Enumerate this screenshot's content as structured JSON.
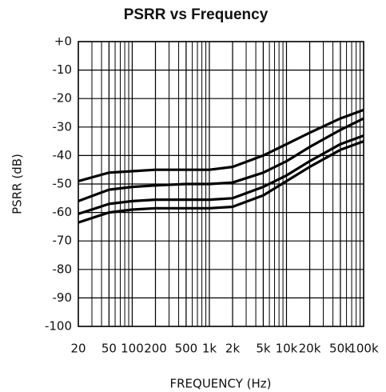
{
  "chart_data": {
    "type": "line",
    "title": "PSRR vs Frequency",
    "x_label": "FREQUENCY (Hz)",
    "y_label": "PSRR (dB)",
    "x": [
      20,
      50,
      100,
      200,
      500,
      1000,
      2000,
      5000,
      10000,
      20000,
      50000,
      100000
    ],
    "series": [
      {
        "color": "#000000",
        "values": [
          -49,
          -46,
          -45.5,
          -45,
          -45,
          -45,
          -44,
          -40,
          -36,
          -32,
          -27,
          -24
        ]
      },
      {
        "color": "#000000",
        "values": [
          -56,
          -52,
          -51,
          -50.5,
          -50,
          -50,
          -49.5,
          -46,
          -42,
          -37,
          -31,
          -27
        ]
      },
      {
        "color": "#000000",
        "values": [
          -60.5,
          -57,
          -56,
          -55.5,
          -55.5,
          -55.5,
          -55,
          -51,
          -47,
          -42,
          -36,
          -33
        ]
      },
      {
        "color": "#000000",
        "values": [
          -63.5,
          -60,
          -59,
          -58.5,
          -58.5,
          -58.5,
          -58,
          -54,
          -49,
          -44,
          -38,
          -35
        ]
      }
    ],
    "xlim": [
      20,
      100000
    ],
    "x_log": true,
    "xticks": [
      20,
      50,
      100,
      200,
      500,
      {
        "value": 1000,
        "label": "1k"
      },
      {
        "value": 2000,
        "label": "2k"
      },
      {
        "value": 5000,
        "label": "5k"
      },
      {
        "value": 10000,
        "label": "10k"
      },
      {
        "value": 20000,
        "label": "20k"
      },
      {
        "value": 50000,
        "label": "50k"
      },
      {
        "value": 100000,
        "label": "100k"
      }
    ],
    "ylim": [
      -100,
      0
    ],
    "yticks": [
      {
        "value": 0,
        "label": "+0"
      },
      -10,
      -20,
      -30,
      -40,
      -50,
      -60,
      -70,
      -80,
      -90,
      -100
    ],
    "grid": true
  }
}
